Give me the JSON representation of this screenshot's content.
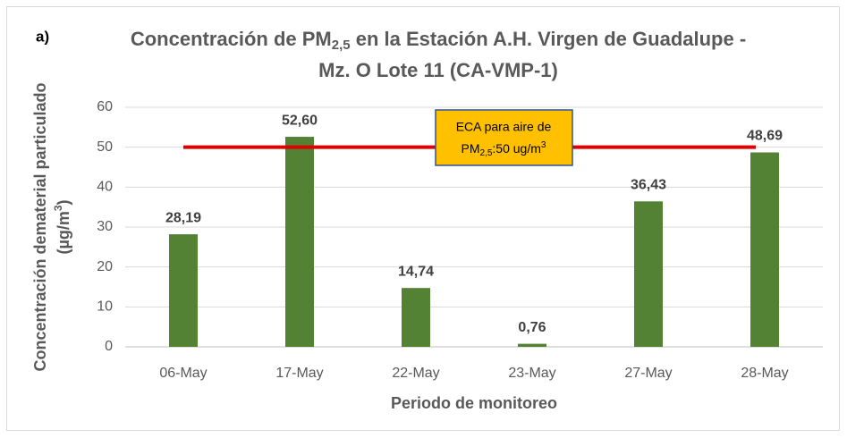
{
  "chart_data": {
    "type": "bar",
    "panel_label": "a)",
    "title": [
      "Concentración de PM",
      "2,5",
      " en la Estación A.H. Virgen de Guadalupe -",
      "Mz. O Lote 11 (CA-VMP-1)"
    ],
    "y_label": [
      "Concentración dematerial particulado",
      "(µg/m",
      "3",
      ")"
    ],
    "x_label": "Periodo de monitoreo",
    "categories": [
      "06-May",
      "17-May",
      "22-May",
      "23-May",
      "27-May",
      "28-May"
    ],
    "values": [
      28.19,
      52.6,
      14.74,
      0.76,
      36.43,
      48.69
    ],
    "value_labels": [
      "28,19",
      "52,60",
      "14,74",
      "0,76",
      "36,43",
      "48,69"
    ],
    "color": "#548235",
    "ylim": [
      0,
      60
    ],
    "yticks": [
      0,
      10,
      20,
      30,
      40,
      50,
      60
    ],
    "grid": true,
    "reference_line": {
      "value": 50,
      "color": "#e00000",
      "label": [
        "ECA para aire de",
        "PM",
        "2,5",
        ":50 ug/m",
        "3"
      ],
      "label_color": "#ffc000"
    }
  }
}
